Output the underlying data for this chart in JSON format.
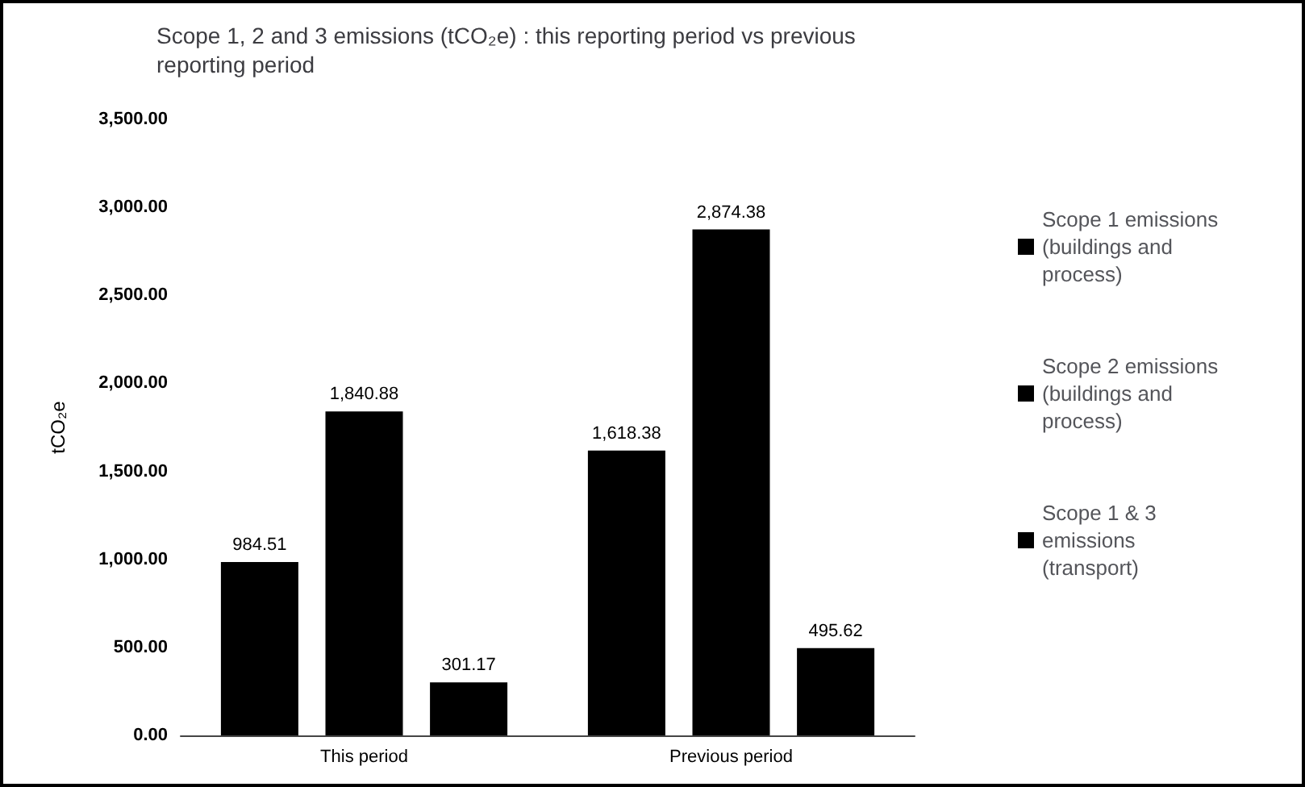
{
  "chart_data": {
    "type": "bar",
    "title": "Scope 1, 2 and 3 emissions (tCO₂e) : this reporting period vs previous reporting period",
    "ylabel": "tCO₂e",
    "categories": [
      "This period",
      "Previous period"
    ],
    "series": [
      {
        "name": "Scope 1 emissions (buildings and process)",
        "color": "#000000",
        "values": [
          984.51,
          1618.38
        ],
        "value_labels": [
          "984.51",
          "1,618.38"
        ]
      },
      {
        "name": "Scope 2 emissions (buildings and process)",
        "color": "#000000",
        "values": [
          1840.88,
          2874.38
        ],
        "value_labels": [
          "1,840.88",
          "2,874.38"
        ]
      },
      {
        "name": "Scope 1 & 3 emissions (transport)",
        "color": "#000000",
        "values": [
          301.17,
          495.62
        ],
        "value_labels": [
          "301.17",
          "495.62"
        ]
      }
    ],
    "ylim": [
      0,
      3500
    ],
    "yticks": [
      {
        "value": 0,
        "label": "0.00"
      },
      {
        "value": 500,
        "label": "500.00"
      },
      {
        "value": 1000,
        "label": "1,000.00"
      },
      {
        "value": 1500,
        "label": "1,500.00"
      },
      {
        "value": 2000,
        "label": "2,000.00"
      },
      {
        "value": 2500,
        "label": "2,500.00"
      },
      {
        "value": 3000,
        "label": "3,000.00"
      },
      {
        "value": 3500,
        "label": "3,500.00"
      }
    ],
    "grid": false,
    "legend": "right"
  }
}
